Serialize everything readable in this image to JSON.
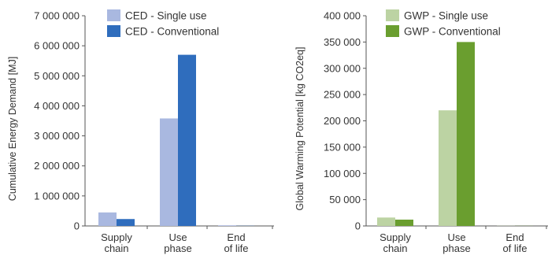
{
  "chart_data": [
    {
      "type": "bar",
      "categories": [
        [
          "Supply",
          "chain"
        ],
        [
          "Use",
          "phase"
        ],
        [
          "End",
          "of life"
        ]
      ],
      "ylabel": "Cumulative Energy Demand [MJ]",
      "ylim": [
        0,
        7000000
      ],
      "yticks": [
        0,
        1000000,
        2000000,
        3000000,
        4000000,
        5000000,
        6000000,
        7000000
      ],
      "ytick_labels": [
        "0",
        "1 000 000",
        "2 000 000",
        "3 000 000",
        "4 000 000",
        "5 000 000",
        "6 000 000",
        "7 000 000"
      ],
      "legend_position": "top-left",
      "grid": false,
      "series": [
        {
          "name": "CED - Single use",
          "color": "#a9b8e0",
          "values": [
            450000,
            3580000,
            20000
          ]
        },
        {
          "name": "CED - Conventional",
          "color": "#2f6dbd",
          "values": [
            230000,
            5700000,
            5000
          ]
        }
      ]
    },
    {
      "type": "bar",
      "categories": [
        [
          "Supply",
          "chain"
        ],
        [
          "Use",
          "phase"
        ],
        [
          "End",
          "of life"
        ]
      ],
      "ylabel": "Global Warming Potential [kg CO2eq]",
      "ylim": [
        0,
        400000
      ],
      "yticks": [
        0,
        50000,
        100000,
        150000,
        200000,
        250000,
        300000,
        350000,
        400000
      ],
      "ytick_labels": [
        "0",
        "50 000",
        "100 000",
        "150 000",
        "200 000",
        "250 000",
        "300 000",
        "350 000",
        "400 000"
      ],
      "legend_position": "top-left",
      "grid": false,
      "series": [
        {
          "name": "GWP - Single use",
          "color": "#bcd3a3",
          "values": [
            16000,
            220000,
            300
          ]
        },
        {
          "name": "GWP - Conventional",
          "color": "#6a9e2f",
          "values": [
            12000,
            350000,
            200
          ]
        }
      ]
    }
  ]
}
